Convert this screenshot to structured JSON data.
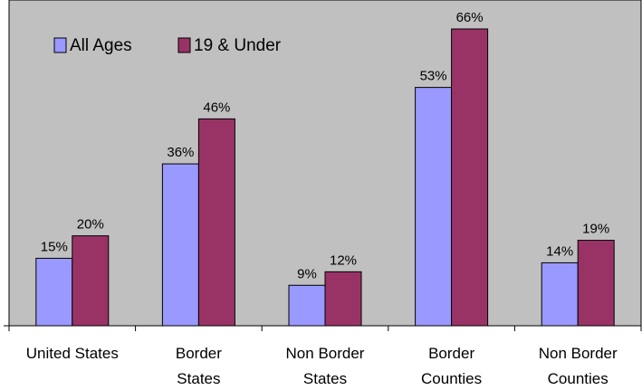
{
  "chart_data": {
    "type": "bar",
    "categories": [
      [
        "United States"
      ],
      [
        "Border",
        "States"
      ],
      [
        "Non Border",
        "States"
      ],
      [
        "Border",
        "Counties"
      ],
      [
        "Non Border",
        "Counties"
      ]
    ],
    "series": [
      {
        "name": "All Ages",
        "values": [
          15,
          36,
          9,
          53,
          14
        ],
        "labels": [
          "15%",
          "36%",
          "9%",
          "53%",
          "14%"
        ],
        "color": "#9999ff"
      },
      {
        "name": "19 & Under",
        "values": [
          20,
          46,
          12,
          66,
          19
        ],
        "labels": [
          "20%",
          "46%",
          "12%",
          "66%",
          "19%"
        ],
        "color": "#993366"
      }
    ],
    "ylim": [
      0,
      70
    ],
    "grid": false,
    "plot_background": "#c0c0c0",
    "legend_position": "top-left"
  }
}
